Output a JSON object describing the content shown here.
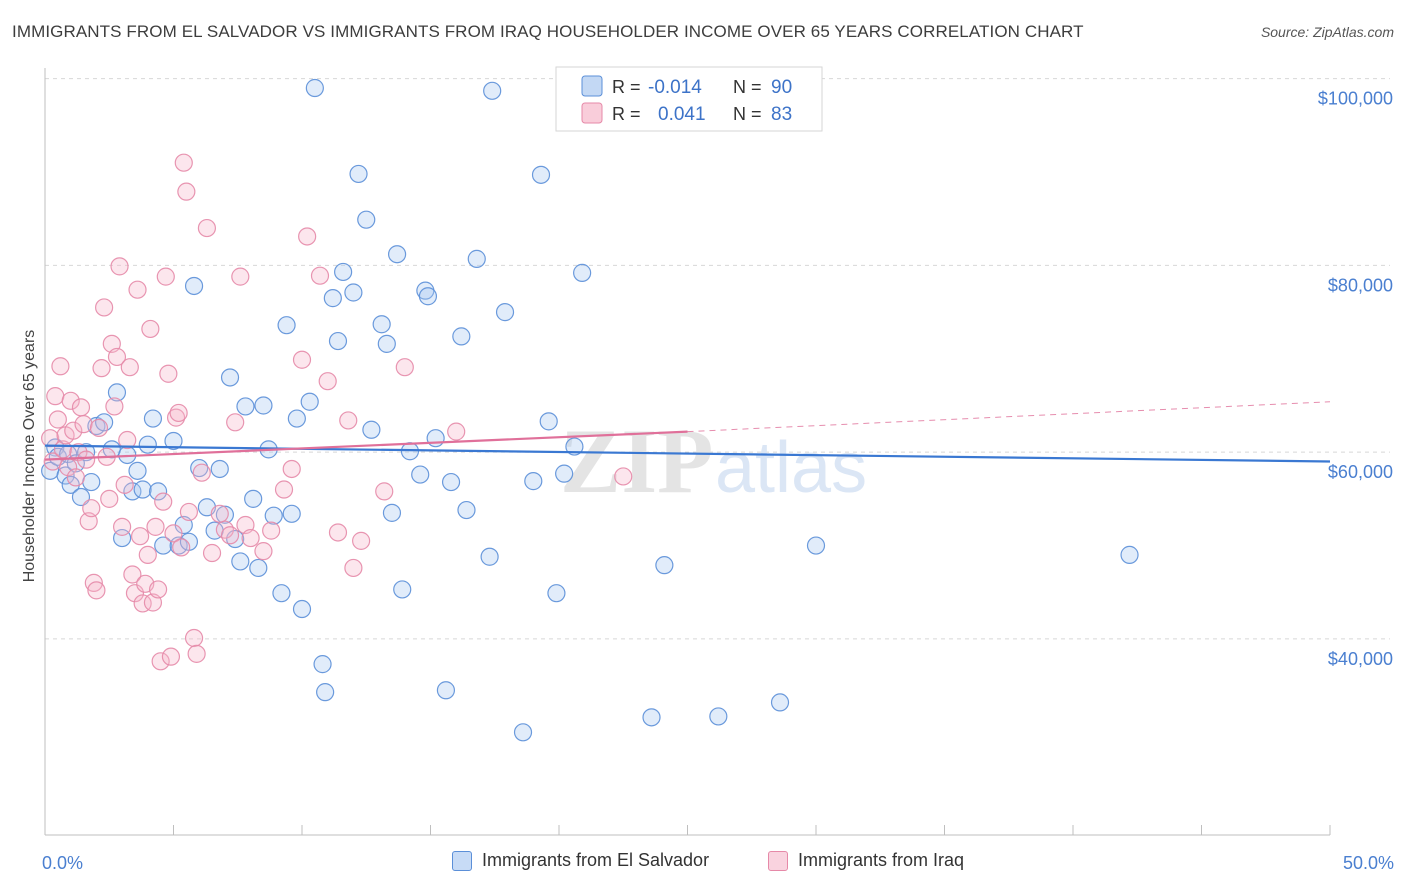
{
  "header": {
    "title": "IMMIGRANTS FROM EL SALVADOR VS IMMIGRANTS FROM IRAQ HOUSEHOLDER INCOME OVER 65 YEARS CORRELATION CHART",
    "source": "Source: ZipAtlas.com"
  },
  "legend_box": {
    "rows": [
      {
        "r_label": "R =",
        "r_value": "-0.014",
        "n_label": "N =",
        "n_value": "90"
      },
      {
        "r_label": "R =",
        "r_value": "0.041",
        "n_label": "N =",
        "n_value": "83"
      }
    ]
  },
  "watermark": {
    "zip": "ZIP",
    "atlas": "atlas"
  },
  "colors": {
    "blue_fill": "#a9c8f0",
    "blue_stroke": "#5b8fd8",
    "blue_line": "#3a78d2",
    "pink_fill": "#f6b8cb",
    "pink_stroke": "#e689a8",
    "pink_line": "#e0709a",
    "tick_text": "#4a7fd0",
    "grid": "#d8d8d8"
  },
  "chart_data": {
    "type": "scatter",
    "title": "IMMIGRANTS FROM EL SALVADOR VS IMMIGRANTS FROM IRAQ HOUSEHOLDER INCOME OVER 65 YEARS CORRELATION CHART",
    "xlabel": "",
    "ylabel": "Householder Income Over 65 years",
    "xlim": [
      0,
      50
    ],
    "ylim": [
      19000,
      102000
    ],
    "x_tick_labels": [
      "0.0%",
      "50.0%"
    ],
    "y_ticks": [
      {
        "value": 100000,
        "label": "$100,000"
      },
      {
        "value": 80000,
        "label": "$80,000"
      },
      {
        "value": 60000,
        "label": "$60,000"
      },
      {
        "value": 40000,
        "label": "$40,000"
      }
    ],
    "grid": true,
    "legend_position": "bottom",
    "series": [
      {
        "name": "Immigrants from El Salvador",
        "color": "#5b8fd8",
        "trend": {
          "x": [
            0,
            50
          ],
          "y": [
            60700,
            59000
          ]
        },
        "points": [
          [
            0.2,
            58000
          ],
          [
            0.4,
            60500
          ],
          [
            0.5,
            59500
          ],
          [
            0.8,
            57500
          ],
          [
            0.9,
            59800
          ],
          [
            1.0,
            56500
          ],
          [
            1.2,
            58800
          ],
          [
            1.4,
            55200
          ],
          [
            1.6,
            60000
          ],
          [
            1.8,
            56800
          ],
          [
            2.0,
            62800
          ],
          [
            2.3,
            63200
          ],
          [
            2.6,
            60300
          ],
          [
            2.8,
            66400
          ],
          [
            3.0,
            50800
          ],
          [
            3.2,
            59700
          ],
          [
            3.4,
            55800
          ],
          [
            3.6,
            58000
          ],
          [
            3.8,
            56000
          ],
          [
            4.0,
            60800
          ],
          [
            4.2,
            63600
          ],
          [
            4.4,
            55800
          ],
          [
            4.6,
            50000
          ],
          [
            5.0,
            61200
          ],
          [
            5.2,
            50000
          ],
          [
            5.4,
            52200
          ],
          [
            5.6,
            50400
          ],
          [
            5.8,
            77800
          ],
          [
            6.0,
            58300
          ],
          [
            6.3,
            54100
          ],
          [
            6.6,
            51600
          ],
          [
            6.8,
            58200
          ],
          [
            7.0,
            53300
          ],
          [
            7.2,
            68000
          ],
          [
            7.4,
            50700
          ],
          [
            7.6,
            48300
          ],
          [
            7.8,
            64900
          ],
          [
            8.1,
            55000
          ],
          [
            8.3,
            47600
          ],
          [
            8.5,
            65000
          ],
          [
            8.7,
            60300
          ],
          [
            8.9,
            53200
          ],
          [
            9.2,
            44900
          ],
          [
            9.4,
            73600
          ],
          [
            9.6,
            53400
          ],
          [
            9.8,
            63600
          ],
          [
            10.0,
            43200
          ],
          [
            10.3,
            65400
          ],
          [
            10.5,
            99000
          ],
          [
            10.8,
            37300
          ],
          [
            10.9,
            34300
          ],
          [
            11.2,
            76500
          ],
          [
            11.4,
            71900
          ],
          [
            11.6,
            79300
          ],
          [
            12.0,
            77100
          ],
          [
            12.2,
            89800
          ],
          [
            12.5,
            84900
          ],
          [
            12.7,
            62400
          ],
          [
            13.1,
            73700
          ],
          [
            13.3,
            71600
          ],
          [
            13.5,
            53500
          ],
          [
            13.7,
            81200
          ],
          [
            13.9,
            45300
          ],
          [
            14.2,
            60100
          ],
          [
            14.6,
            57600
          ],
          [
            14.8,
            77300
          ],
          [
            14.9,
            76700
          ],
          [
            15.2,
            61500
          ],
          [
            15.6,
            34500
          ],
          [
            15.8,
            56800
          ],
          [
            16.2,
            72400
          ],
          [
            16.4,
            53800
          ],
          [
            16.8,
            80700
          ],
          [
            17.3,
            48800
          ],
          [
            17.4,
            98700
          ],
          [
            17.9,
            75000
          ],
          [
            18.6,
            30000
          ],
          [
            19.0,
            56900
          ],
          [
            19.3,
            89700
          ],
          [
            19.6,
            63300
          ],
          [
            19.9,
            44900
          ],
          [
            20.2,
            57700
          ],
          [
            20.6,
            60600
          ],
          [
            20.9,
            79200
          ],
          [
            23.6,
            31600
          ],
          [
            24.1,
            47900
          ],
          [
            26.2,
            31700
          ],
          [
            28.6,
            33200
          ],
          [
            30.0,
            50000
          ],
          [
            42.2,
            49000
          ]
        ]
      },
      {
        "name": "Immigrants from Iraq",
        "color": "#e689a8",
        "trend": {
          "x": [
            0,
            25
          ],
          "y": [
            59200,
            62200
          ]
        },
        "trend_dashed": {
          "x": [
            25,
            50
          ],
          "y": [
            62200,
            65400
          ]
        },
        "points": [
          [
            0.2,
            61500
          ],
          [
            0.3,
            59000
          ],
          [
            0.4,
            66000
          ],
          [
            0.5,
            63500
          ],
          [
            0.6,
            69200
          ],
          [
            0.7,
            60300
          ],
          [
            0.8,
            61800
          ],
          [
            0.9,
            58400
          ],
          [
            1.0,
            65500
          ],
          [
            1.1,
            62300
          ],
          [
            1.2,
            57300
          ],
          [
            1.3,
            60000
          ],
          [
            1.4,
            64800
          ],
          [
            1.5,
            63000
          ],
          [
            1.6,
            59200
          ],
          [
            1.7,
            52600
          ],
          [
            1.8,
            54000
          ],
          [
            1.9,
            46000
          ],
          [
            2.0,
            45200
          ],
          [
            2.1,
            62600
          ],
          [
            2.2,
            69000
          ],
          [
            2.3,
            75500
          ],
          [
            2.4,
            59500
          ],
          [
            2.5,
            55000
          ],
          [
            2.6,
            71600
          ],
          [
            2.7,
            64900
          ],
          [
            2.8,
            70200
          ],
          [
            2.9,
            79900
          ],
          [
            3.0,
            52000
          ],
          [
            3.1,
            56500
          ],
          [
            3.2,
            61300
          ],
          [
            3.3,
            69100
          ],
          [
            3.4,
            46900
          ],
          [
            3.5,
            44900
          ],
          [
            3.6,
            77400
          ],
          [
            3.7,
            51000
          ],
          [
            3.8,
            43800
          ],
          [
            3.9,
            45900
          ],
          [
            4.0,
            49000
          ],
          [
            4.1,
            73200
          ],
          [
            4.2,
            43900
          ],
          [
            4.3,
            52000
          ],
          [
            4.4,
            45300
          ],
          [
            4.5,
            37600
          ],
          [
            4.6,
            54700
          ],
          [
            4.7,
            78800
          ],
          [
            4.8,
            68400
          ],
          [
            4.9,
            38100
          ],
          [
            5.0,
            51300
          ],
          [
            5.1,
            63700
          ],
          [
            5.2,
            64200
          ],
          [
            5.3,
            49800
          ],
          [
            5.4,
            91000
          ],
          [
            5.5,
            87900
          ],
          [
            5.6,
            53600
          ],
          [
            5.8,
            40100
          ],
          [
            5.9,
            38400
          ],
          [
            6.1,
            57800
          ],
          [
            6.3,
            84000
          ],
          [
            6.5,
            49200
          ],
          [
            6.8,
            53400
          ],
          [
            7.0,
            51700
          ],
          [
            7.2,
            51100
          ],
          [
            7.4,
            63200
          ],
          [
            7.6,
            78800
          ],
          [
            7.8,
            52200
          ],
          [
            8.0,
            50800
          ],
          [
            8.5,
            49400
          ],
          [
            8.8,
            51600
          ],
          [
            9.3,
            56000
          ],
          [
            9.6,
            58200
          ],
          [
            10.0,
            69900
          ],
          [
            10.2,
            83100
          ],
          [
            10.7,
            78900
          ],
          [
            11.0,
            67600
          ],
          [
            11.4,
            51400
          ],
          [
            11.8,
            63400
          ],
          [
            12.0,
            47600
          ],
          [
            12.3,
            50500
          ],
          [
            13.2,
            55800
          ],
          [
            14.0,
            69100
          ],
          [
            16.0,
            62200
          ],
          [
            22.5,
            57400
          ]
        ]
      }
    ]
  },
  "bottom_legend": {
    "items": [
      {
        "label": "Immigrants from El Salvador"
      },
      {
        "label": "Immigrants from Iraq"
      }
    ]
  }
}
